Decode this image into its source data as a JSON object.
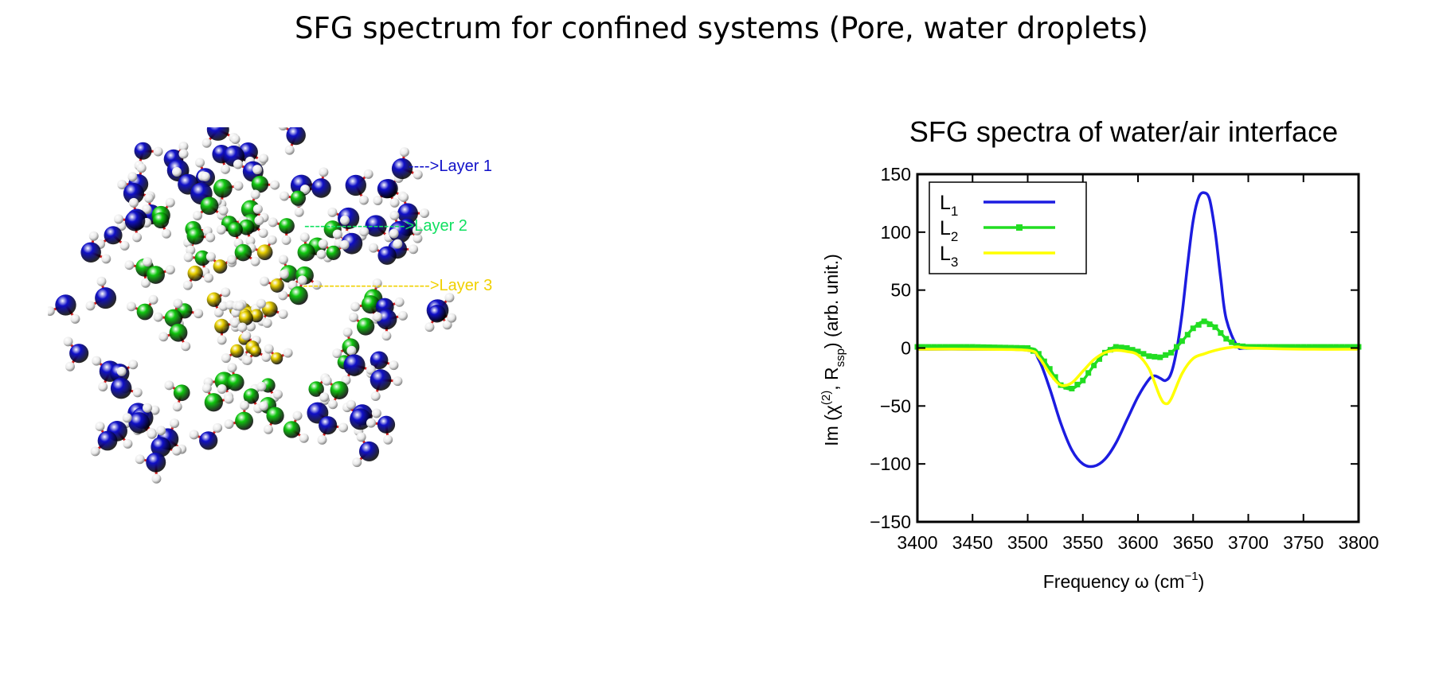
{
  "slide": {
    "title": "SFG spectrum for confined systems (Pore, water droplets)"
  },
  "molecule_figure": {
    "layers": [
      {
        "label": "---->Layer 1",
        "color": "#1010c8"
      },
      {
        "label": "------------------->Layer 2",
        "color": "#10e060"
      },
      {
        "label": "------------------------>Layer 3",
        "color": "#f0d000"
      }
    ],
    "atom_colors": {
      "oxygen_outer": "#1010c8",
      "oxygen_middle": "#10c810",
      "oxygen_inner": "#e8d000",
      "hydrogen": "#e8e8e8",
      "bond": "#d02020"
    }
  },
  "chart_data": {
    "type": "line",
    "title": "SFG spectra of water/air interface",
    "xlabel": "Frequency ω (cm",
    "xlabel_sup": "−1",
    "xlabel_end": ")",
    "ylabel_parts": [
      "Im (χ",
      "(2)",
      ", R",
      "ssp",
      ") (arb. unit.)"
    ],
    "xlim": [
      3400,
      3800
    ],
    "ylim": [
      -150,
      150
    ],
    "xticks": [
      3400,
      3450,
      3500,
      3550,
      3600,
      3650,
      3700,
      3750,
      3800
    ],
    "yticks": [
      150,
      100,
      50,
      0,
      -50,
      -100,
      -150
    ],
    "ytick_labels": [
      "150",
      "100",
      "50",
      "0",
      "−50",
      "−100",
      "−150"
    ],
    "grid": false,
    "legend_position": "top-left",
    "series": [
      {
        "name": "L",
        "sub": "1",
        "color": "#1c1ce0",
        "marker": "none",
        "x": [
          3400,
          3450,
          3500,
          3510,
          3520,
          3530,
          3540,
          3550,
          3560,
          3570,
          3580,
          3590,
          3600,
          3610,
          3615,
          3620,
          3625,
          3630,
          3635,
          3640,
          3645,
          3650,
          3655,
          3660,
          3665,
          3670,
          3675,
          3680,
          3690,
          3700,
          3750,
          3800
        ],
        "y": [
          -1,
          -1,
          -2,
          -10,
          -35,
          -65,
          -88,
          -100,
          -102,
          -96,
          -82,
          -62,
          -42,
          -27,
          -24,
          -26,
          -28,
          -22,
          -2,
          30,
          72,
          110,
          130,
          134,
          128,
          100,
          60,
          25,
          2,
          0,
          0,
          0
        ]
      },
      {
        "name": "L",
        "sub": "2",
        "color": "#22dd22",
        "marker": "square",
        "x": [
          3400,
          3450,
          3500,
          3510,
          3520,
          3530,
          3540,
          3550,
          3560,
          3570,
          3580,
          3590,
          3600,
          3610,
          3620,
          3630,
          3640,
          3650,
          3660,
          3670,
          3680,
          3690,
          3700,
          3750,
          3800
        ],
        "y": [
          1,
          1,
          0,
          -5,
          -18,
          -32,
          -35,
          -28,
          -15,
          -4,
          1,
          0,
          -3,
          -7,
          -8,
          -4,
          6,
          17,
          23,
          18,
          8,
          2,
          1,
          1,
          1
        ]
      },
      {
        "name": "L",
        "sub": "3",
        "color": "#ffff00",
        "marker": "none",
        "x": [
          3400,
          3450,
          3500,
          3510,
          3520,
          3530,
          3540,
          3550,
          3560,
          3570,
          3580,
          3590,
          3600,
          3610,
          3620,
          3625,
          3630,
          3640,
          3650,
          3660,
          3670,
          3680,
          3690,
          3700,
          3750,
          3800
        ],
        "y": [
          -1,
          -1,
          -2,
          -8,
          -22,
          -32,
          -30,
          -20,
          -10,
          -4,
          -2,
          -3,
          -6,
          -18,
          -42,
          -48,
          -44,
          -22,
          -9,
          -5,
          -2,
          0,
          1,
          0,
          -1,
          -1
        ]
      }
    ]
  }
}
